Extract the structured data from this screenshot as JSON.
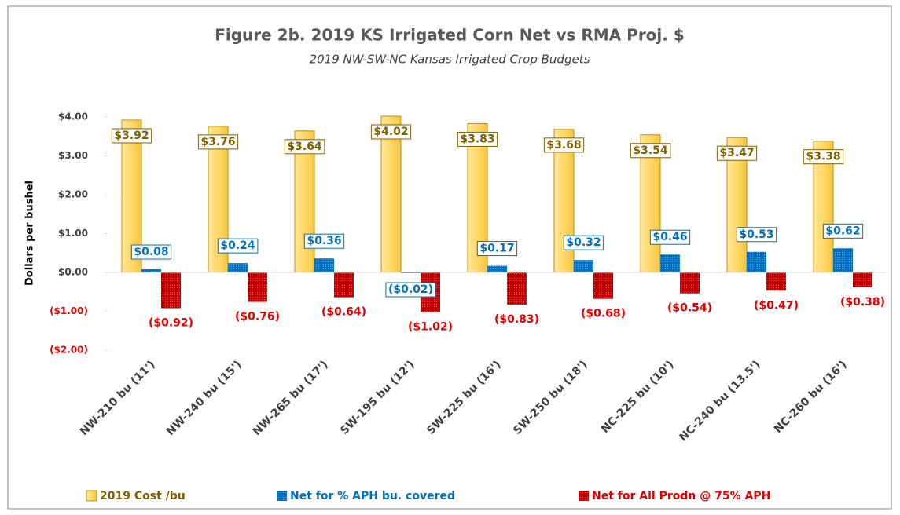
{
  "chart_data": {
    "type": "bar",
    "title": "Figure 2b. 2019 KS Irrigated Corn Net vs RMA Proj. $",
    "subtitle": "2019 NW-SW-NC Kansas Irrigated Crop Budgets",
    "y_label": "Dollars per bushel",
    "categories": [
      "NW-210 bu (11')",
      "NW-240 bu (15')",
      "NW-265 bu (17')",
      "SW-195 bu (12')",
      "SW-225 bu (16')",
      "SW-250 bu (18')",
      "NC-225 bu (10')",
      "NC-240 bu (13.5')",
      "NC-260 bu (16')"
    ],
    "series": [
      {
        "name": "2019 Cost /bu",
        "color": "#ffd966",
        "values": [
          3.92,
          3.76,
          3.64,
          4.02,
          3.83,
          3.68,
          3.54,
          3.47,
          3.38
        ],
        "value_labels": [
          "$3.92",
          "$3.76",
          "$3.64",
          "$4.02",
          "$3.83",
          "$3.68",
          "$3.54",
          "$3.47",
          "$3.38"
        ]
      },
      {
        "name": "Net for % APH bu. covered",
        "color": "#0070c0",
        "values": [
          0.08,
          0.24,
          0.36,
          -0.02,
          0.17,
          0.32,
          0.46,
          0.53,
          0.62
        ],
        "value_labels": [
          "$0.08",
          "$0.24",
          "$0.36",
          "($0.02)",
          "$0.17",
          "$0.32",
          "$0.46",
          "$0.53",
          "$0.62"
        ]
      },
      {
        "name": "Net for All Prodn @ 75% APH",
        "color": "#c00000",
        "values": [
          -0.92,
          -0.76,
          -0.64,
          -1.02,
          -0.83,
          -0.68,
          -0.54,
          -0.47,
          -0.38
        ],
        "value_labels": [
          "($0.92)",
          "($0.76)",
          "($0.64)",
          "($1.02)",
          "($0.83)",
          "($0.68)",
          "($0.54)",
          "($0.47)",
          "($0.38)"
        ]
      }
    ],
    "ylim": [
      -2,
      4
    ],
    "yticks": [
      {
        "value": -2,
        "label": "($2.00)"
      },
      {
        "value": -1,
        "label": "($1.00)"
      },
      {
        "value": 0,
        "label": "$0.00"
      },
      {
        "value": 1,
        "label": "$1.00"
      },
      {
        "value": 2,
        "label": "$2.00"
      },
      {
        "value": 3,
        "label": "$3.00"
      },
      {
        "value": 4,
        "label": "$4.00"
      }
    ],
    "legend": "bottom"
  }
}
